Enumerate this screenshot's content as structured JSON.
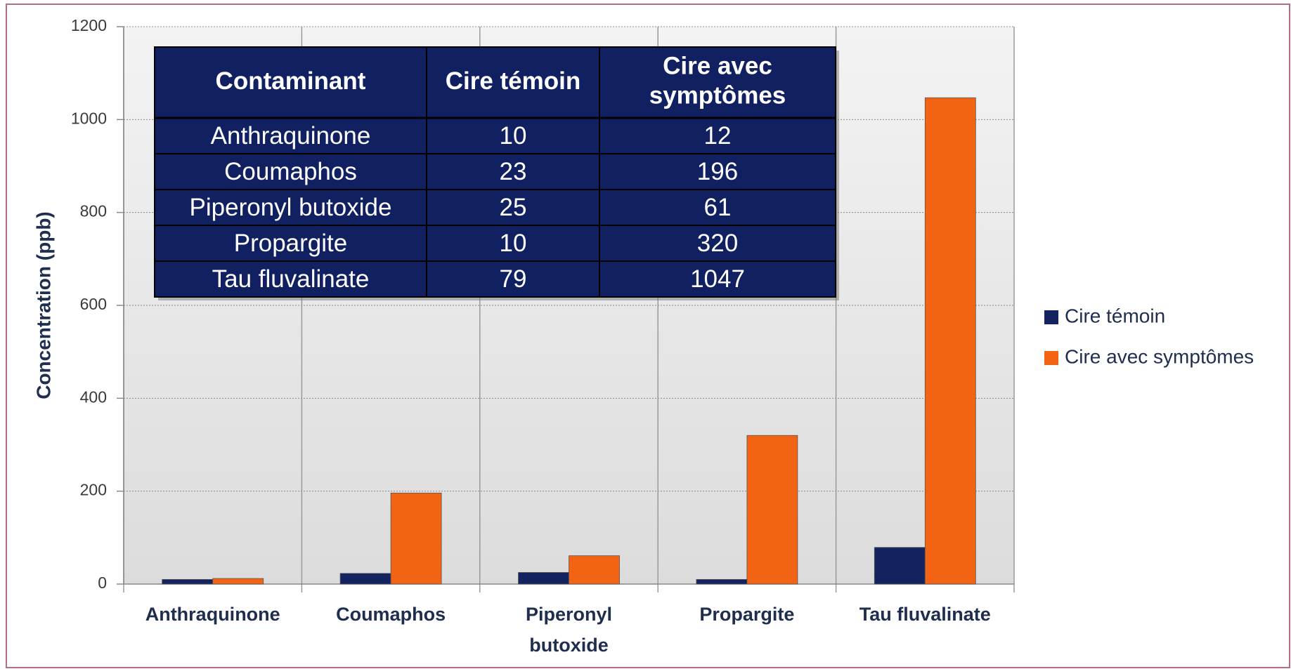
{
  "chart_data": {
    "type": "bar",
    "categories": [
      "Anthraquinone",
      "Coumaphos",
      "Piperonyl butoxide",
      "Propargite",
      "Tau fluvalinate"
    ],
    "series": [
      {
        "name": "Cire témoin",
        "color": "#13235f",
        "values": [
          10,
          23,
          25,
          10,
          79
        ]
      },
      {
        "name": "Cire avec symptômes",
        "color": "#f26313",
        "values": [
          12,
          196,
          61,
          320,
          1047
        ]
      }
    ],
    "y_label": "Concentration (ppb)",
    "ylim": [
      0,
      1200
    ],
    "yticks": [
      0,
      200,
      400,
      600,
      800,
      1000,
      1200
    ],
    "grid": true,
    "legend": "right"
  },
  "table": {
    "header": [
      "Contaminant",
      "Cire témoin",
      "Cire avec symptômes"
    ],
    "rows": [
      [
        "Anthraquinone",
        "10",
        "12"
      ],
      [
        "Coumaphos",
        "23",
        "196"
      ],
      [
        "Piperonyl butoxide",
        "25",
        "61"
      ],
      [
        "Propargite",
        "10",
        "320"
      ],
      [
        "Tau fluvalinate",
        "79",
        "1047"
      ]
    ]
  }
}
